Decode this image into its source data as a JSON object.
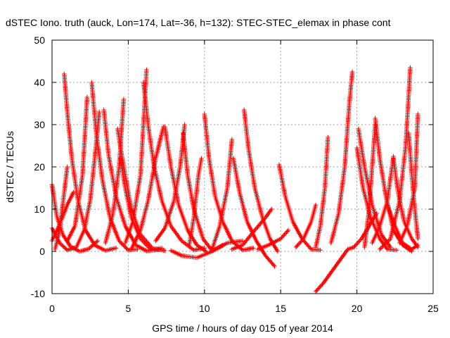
{
  "chart_data": {
    "type": "scatter",
    "title": "dSTEC Iono. truth (auck, Lon=174, Lat=-36, h=132): STEC-STEC_elemax in phase cont",
    "xlabel": "GPS time / hours of day 015 of year 2014",
    "ylabel": "dSTEC  / TECUs",
    "xlim": [
      0,
      25
    ],
    "ylim": [
      -10,
      50
    ],
    "xticks": [
      0,
      5,
      10,
      15,
      20,
      25
    ],
    "yticks": [
      -10,
      0,
      10,
      20,
      30,
      40,
      50
    ],
    "grid": true,
    "marker": "+",
    "colors": {
      "series": "#ff0000",
      "grid": "#a0a0a0",
      "axis": "#000000"
    },
    "series": [
      {
        "values": [
          [
            0.0,
            15.8
          ],
          [
            0.3,
            8.5
          ],
          [
            0.7,
            4.0
          ],
          [
            1.2,
            1.2
          ],
          [
            1.8,
            0.0
          ],
          [
            2.4,
            0.6
          ],
          [
            3.0,
            2.5
          ]
        ]
      },
      {
        "values": [
          [
            0.0,
            5.5
          ],
          [
            0.5,
            2.0
          ],
          [
            1.0,
            0.3
          ],
          [
            1.6,
            1.0
          ],
          [
            2.1,
            5.0
          ],
          [
            2.5,
            12.0
          ],
          [
            2.8,
            22.0
          ],
          [
            3.1,
            33.0
          ]
        ]
      },
      {
        "values": [
          [
            0.0,
            2.5
          ],
          [
            0.5,
            6.5
          ],
          [
            1.0,
            11.0
          ],
          [
            1.4,
            14.0
          ]
        ]
      },
      {
        "values": [
          [
            0.2,
            0.5
          ],
          [
            0.5,
            5.0
          ],
          [
            0.8,
            14.0
          ],
          [
            1.0,
            20.0
          ]
        ]
      },
      {
        "values": [
          [
            0.8,
            42.0
          ],
          [
            1.0,
            33.0
          ],
          [
            1.3,
            22.0
          ],
          [
            1.7,
            12.0
          ],
          [
            2.2,
            5.0
          ],
          [
            2.8,
            1.5
          ],
          [
            3.5,
            0.2
          ],
          [
            4.2,
            0.8
          ]
        ]
      },
      {
        "values": [
          [
            1.0,
            2.5
          ],
          [
            1.5,
            6.0
          ],
          [
            2.0,
            18.0
          ],
          [
            2.3,
            36.5
          ]
        ]
      },
      {
        "values": [
          [
            2.6,
            40.0
          ],
          [
            2.9,
            28.0
          ],
          [
            3.3,
            17.0
          ],
          [
            3.8,
            8.0
          ],
          [
            4.4,
            2.5
          ],
          [
            5.0,
            0.3
          ],
          [
            5.6,
            0.5
          ]
        ]
      },
      {
        "values": [
          [
            3.4,
            33.5
          ],
          [
            3.7,
            23.0
          ],
          [
            4.2,
            13.0
          ],
          [
            4.8,
            6.0
          ],
          [
            5.5,
            1.5
          ],
          [
            6.2,
            0.1
          ],
          [
            7.0,
            0.4
          ]
        ]
      },
      {
        "values": [
          [
            3.5,
            2.0
          ],
          [
            4.0,
            9.0
          ],
          [
            4.4,
            20.0
          ],
          [
            4.7,
            36.0
          ]
        ]
      },
      {
        "values": [
          [
            4.3,
            29.0
          ],
          [
            4.7,
            20.0
          ],
          [
            5.2,
            10.0
          ],
          [
            5.8,
            4.0
          ],
          [
            6.6,
            0.7
          ],
          [
            7.4,
            0.2
          ]
        ]
      },
      {
        "values": [
          [
            4.5,
            22.0
          ],
          [
            4.8,
            15.0
          ],
          [
            5.2,
            8.0
          ],
          [
            5.8,
            3.0
          ],
          [
            6.5,
            0.4
          ],
          [
            7.2,
            0.8
          ]
        ]
      },
      {
        "values": [
          [
            4.8,
            2.0
          ],
          [
            5.3,
            7.0
          ],
          [
            5.8,
            18.0
          ],
          [
            6.2,
            43.0
          ]
        ]
      },
      {
        "values": [
          [
            6.0,
            40.0
          ],
          [
            6.3,
            30.0
          ],
          [
            6.7,
            20.0
          ],
          [
            7.2,
            12.0
          ],
          [
            7.8,
            6.0
          ],
          [
            8.5,
            2.5
          ],
          [
            9.3,
            0.3
          ],
          [
            10.0,
            0.8
          ]
        ]
      },
      {
        "values": [
          [
            5.2,
            0.5
          ],
          [
            5.8,
            5.0
          ],
          [
            6.3,
            12.0
          ],
          [
            6.8,
            22.0
          ],
          [
            7.3,
            29.5
          ]
        ]
      },
      {
        "values": [
          [
            7.4,
            29.5
          ],
          [
            7.8,
            20.0
          ],
          [
            8.3,
            11.0
          ],
          [
            8.9,
            5.0
          ],
          [
            9.5,
            1.5
          ],
          [
            10.1,
            0.0
          ]
        ]
      },
      {
        "values": [
          [
            6.8,
            2.5
          ],
          [
            7.4,
            5.5
          ],
          [
            8.0,
            12.0
          ],
          [
            8.4,
            20.0
          ],
          [
            8.7,
            30.0
          ]
        ]
      },
      {
        "values": [
          [
            8.6,
            28.0
          ],
          [
            8.9,
            18.0
          ],
          [
            9.3,
            10.0
          ],
          [
            9.9,
            3.0
          ],
          [
            10.5,
            0.2
          ],
          [
            11.2,
            1.5
          ]
        ]
      },
      {
        "values": [
          [
            9.0,
            1.5
          ],
          [
            9.3,
            8.0
          ],
          [
            9.6,
            18.0
          ],
          [
            9.8,
            22.0
          ]
        ]
      },
      {
        "values": [
          [
            10.0,
            32.5
          ],
          [
            10.3,
            22.0
          ],
          [
            10.7,
            13.0
          ],
          [
            11.2,
            7.0
          ],
          [
            11.8,
            2.5
          ],
          [
            12.5,
            0.3
          ],
          [
            13.2,
            0.8
          ]
        ]
      },
      {
        "values": [
          [
            10.5,
            0.5
          ],
          [
            11.0,
            6.0
          ],
          [
            11.5,
            15.0
          ],
          [
            11.8,
            26.5
          ]
        ]
      },
      {
        "values": [
          [
            11.9,
            22.0
          ],
          [
            12.3,
            14.0
          ],
          [
            12.8,
            7.0
          ],
          [
            13.4,
            2.5
          ],
          [
            14.0,
            -1.0
          ],
          [
            14.6,
            -3.5
          ]
        ]
      },
      {
        "values": [
          [
            12.6,
            33.5
          ],
          [
            12.9,
            24.0
          ],
          [
            13.3,
            15.0
          ],
          [
            13.8,
            8.0
          ],
          [
            14.3,
            3.0
          ],
          [
            14.8,
            0.0
          ]
        ]
      },
      {
        "values": [
          [
            11.8,
            0.5
          ],
          [
            12.5,
            1.5
          ],
          [
            13.3,
            5.0
          ],
          [
            14.0,
            8.0
          ],
          [
            14.4,
            10.0
          ]
        ]
      },
      {
        "values": [
          [
            7.8,
            0.2
          ],
          [
            8.5,
            -1.0
          ],
          [
            9.5,
            -1.5
          ],
          [
            10.5,
            0.0
          ],
          [
            11.5,
            2.0
          ],
          [
            12.5,
            2.5
          ]
        ]
      },
      {
        "values": [
          [
            14.9,
            20.5
          ],
          [
            15.3,
            13.0
          ],
          [
            15.8,
            7.0
          ],
          [
            16.4,
            3.0
          ],
          [
            17.0,
            0.5
          ],
          [
            17.6,
            0.3
          ]
        ]
      },
      {
        "values": [
          [
            13.5,
            0.5
          ],
          [
            14.2,
            1.5
          ],
          [
            15.0,
            3.0
          ],
          [
            15.5,
            5.0
          ]
        ]
      },
      {
        "values": [
          [
            16.0,
            1.0
          ],
          [
            16.5,
            3.0
          ],
          [
            17.0,
            7.0
          ],
          [
            17.3,
            11.0
          ]
        ]
      },
      {
        "values": [
          [
            17.3,
            1.0
          ],
          [
            17.6,
            6.0
          ],
          [
            17.9,
            15.0
          ],
          [
            18.1,
            27.0
          ]
        ]
      },
      {
        "values": [
          [
            17.3,
            -9.5
          ],
          [
            17.8,
            -7.5
          ],
          [
            18.4,
            -4.5
          ],
          [
            19.0,
            -1.5
          ],
          [
            19.4,
            0.5
          ],
          [
            19.8,
            1.0
          ]
        ]
      },
      {
        "values": [
          [
            18.3,
            2.0
          ],
          [
            18.8,
            9.0
          ],
          [
            19.2,
            20.0
          ],
          [
            19.5,
            35.0
          ],
          [
            19.7,
            42.5
          ]
        ]
      },
      {
        "values": [
          [
            20.0,
            24.5
          ],
          [
            20.4,
            15.0
          ],
          [
            20.9,
            8.0
          ],
          [
            21.5,
            3.0
          ],
          [
            22.0,
            0.5
          ],
          [
            22.6,
            0.3
          ]
        ]
      },
      {
        "values": [
          [
            20.1,
            29.0
          ],
          [
            20.5,
            20.0
          ],
          [
            21.0,
            11.0
          ],
          [
            21.6,
            4.0
          ],
          [
            22.2,
            1.0
          ]
        ]
      },
      {
        "values": [
          [
            20.5,
            1.0
          ],
          [
            20.8,
            10.0
          ],
          [
            21.0,
            20.0
          ],
          [
            21.2,
            30.0
          ]
        ]
      },
      {
        "values": [
          [
            21.2,
            31.5
          ],
          [
            21.5,
            22.0
          ],
          [
            21.9,
            13.0
          ],
          [
            22.4,
            5.0
          ],
          [
            23.0,
            1.5
          ],
          [
            23.6,
            0.0
          ]
        ]
      },
      {
        "values": [
          [
            21.0,
            2.0
          ],
          [
            21.5,
            6.0
          ],
          [
            22.0,
            12.0
          ],
          [
            22.4,
            22.5
          ]
        ]
      },
      {
        "values": [
          [
            22.4,
            22.0
          ],
          [
            22.7,
            14.0
          ],
          [
            23.1,
            7.0
          ],
          [
            23.6,
            3.0
          ],
          [
            24.0,
            1.0
          ]
        ]
      },
      {
        "values": [
          [
            21.5,
            0.5
          ],
          [
            22.2,
            3.0
          ],
          [
            22.8,
            12.0
          ],
          [
            23.2,
            25.0
          ],
          [
            23.5,
            43.5
          ]
        ]
      },
      {
        "values": [
          [
            23.4,
            28.0
          ],
          [
            23.6,
            18.0
          ],
          [
            23.8,
            10.0
          ],
          [
            24.0,
            3.0
          ]
        ]
      },
      {
        "values": [
          [
            22.8,
            2.0
          ],
          [
            23.3,
            6.0
          ],
          [
            23.8,
            15.0
          ],
          [
            24.0,
            32.5
          ]
        ]
      },
      {
        "values": [
          [
            22.0,
            11.0
          ],
          [
            22.5,
            6.0
          ],
          [
            23.0,
            2.0
          ],
          [
            23.6,
            0.5
          ],
          [
            24.0,
            1.5
          ]
        ]
      },
      {
        "values": [
          [
            19.8,
            1.0
          ],
          [
            20.3,
            3.0
          ],
          [
            20.8,
            6.0
          ],
          [
            21.3,
            9.0
          ]
        ]
      }
    ]
  }
}
